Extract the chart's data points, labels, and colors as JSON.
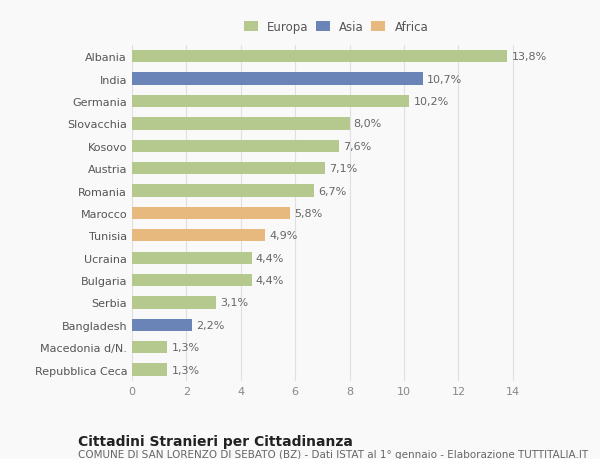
{
  "categories": [
    "Albania",
    "India",
    "Germania",
    "Slovacchia",
    "Kosovo",
    "Austria",
    "Romania",
    "Marocco",
    "Tunisia",
    "Ucraina",
    "Bulgaria",
    "Serbia",
    "Bangladesh",
    "Macedonia d/N.",
    "Repubblica Ceca"
  ],
  "values": [
    13.8,
    10.7,
    10.2,
    8.0,
    7.6,
    7.1,
    6.7,
    5.8,
    4.9,
    4.4,
    4.4,
    3.1,
    2.2,
    1.3,
    1.3
  ],
  "labels": [
    "13,8%",
    "10,7%",
    "10,2%",
    "8,0%",
    "7,6%",
    "7,1%",
    "6,7%",
    "5,8%",
    "4,9%",
    "4,4%",
    "4,4%",
    "3,1%",
    "2,2%",
    "1,3%",
    "1,3%"
  ],
  "continents": [
    "Europa",
    "Asia",
    "Europa",
    "Europa",
    "Europa",
    "Europa",
    "Europa",
    "Africa",
    "Africa",
    "Europa",
    "Europa",
    "Europa",
    "Asia",
    "Europa",
    "Europa"
  ],
  "colors": {
    "Europa": "#b5c98e",
    "Asia": "#6b84b8",
    "Africa": "#e8b97e"
  },
  "title": "Cittadini Stranieri per Cittadinanza",
  "subtitle": "COMUNE DI SAN LORENZO DI SEBATO (BZ) - Dati ISTAT al 1° gennaio - Elaborazione TUTTITALIA.IT",
  "xlim": [
    0,
    15
  ],
  "xticks": [
    0,
    2,
    4,
    6,
    8,
    10,
    12,
    14
  ],
  "background_color": "#f9f9f9",
  "grid_color": "#e0e0e0",
  "bar_height": 0.55,
  "title_fontsize": 10,
  "subtitle_fontsize": 7.5,
  "tick_fontsize": 8,
  "value_fontsize": 8
}
